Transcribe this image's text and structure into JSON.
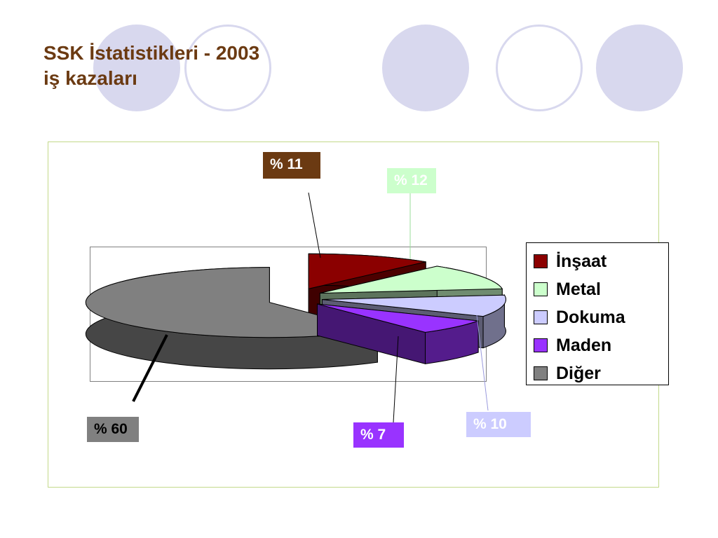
{
  "title_lines": [
    "SSK İstatistikleri - 2003",
    "iş kazaları"
  ],
  "chart_data": {
    "type": "pie",
    "variant": "3d-exploded",
    "categories": [
      "İnşaat",
      "Metal",
      "Dokuma",
      "Maden",
      "Diğer"
    ],
    "values": [
      11,
      12,
      10,
      7,
      60
    ],
    "labels": [
      "% 11",
      "% 12",
      "% 10",
      "% 7",
      "% 60"
    ],
    "colors": {
      "slices": [
        "#8b0000",
        "#ccffcc",
        "#ccccff",
        "#9933ff",
        "#808080"
      ],
      "label_backgrounds": [
        "#6b3a12",
        "#ccffcc",
        "#ccccff",
        "#9933ff",
        "#808080"
      ],
      "label_text": [
        "#ffffff",
        "#ffffff",
        "#ffffff",
        "#ffffff",
        "#000000"
      ]
    },
    "legend_position": "right"
  },
  "theme": {
    "title_color": "#6b3a12",
    "decor_circle": "#d8d8ee",
    "frame_border": "#c3d98a"
  }
}
